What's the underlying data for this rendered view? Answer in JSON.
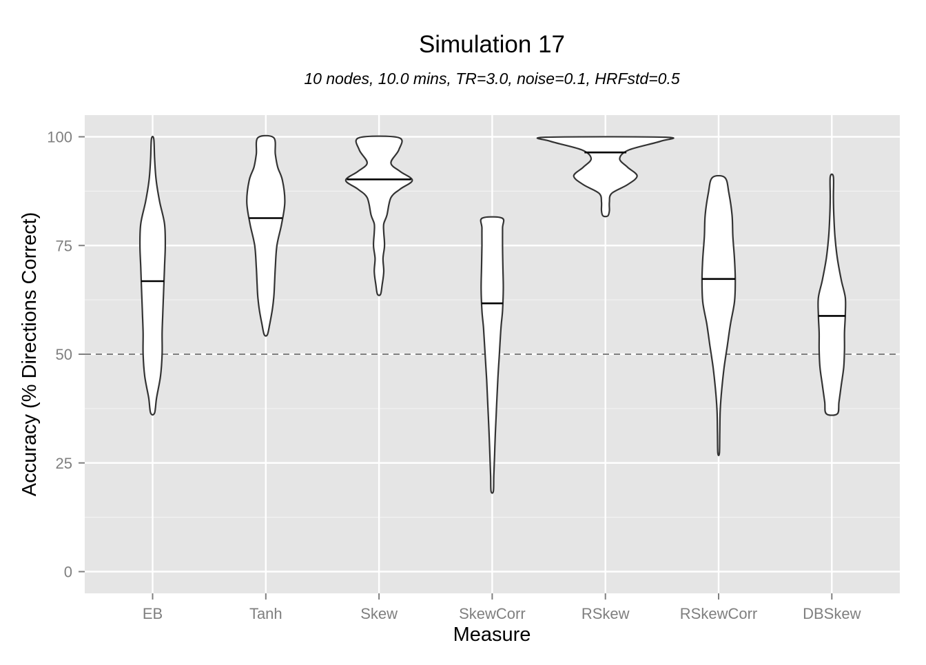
{
  "chart_data": {
    "type": "violin",
    "title": "Simulation 17",
    "subtitle": "10 nodes, 10.0 mins, TR=3.0, noise=0.1, HRFstd=0.5",
    "xlabel": "Measure",
    "ylabel": "Accuracy (% Directions Correct)",
    "ylim": [
      -5,
      105
    ],
    "yticks": [
      0,
      25,
      50,
      75,
      100
    ],
    "reference_line": 50,
    "categories": [
      "EB",
      "Tanh",
      "Skew",
      "SkewCorr",
      "RSkew",
      "RSkewCorr",
      "DBSkew"
    ],
    "violins": [
      {
        "category": "EB",
        "median": 66.8,
        "profile": [
          [
            36.5,
            0.025
          ],
          [
            40,
            0.05
          ],
          [
            45,
            0.1
          ],
          [
            50,
            0.12
          ],
          [
            55,
            0.12
          ],
          [
            60,
            0.13
          ],
          [
            65,
            0.14
          ],
          [
            70,
            0.15
          ],
          [
            75,
            0.16
          ],
          [
            80,
            0.15
          ],
          [
            85,
            0.09
          ],
          [
            90,
            0.045
          ],
          [
            95,
            0.025
          ],
          [
            99.5,
            0.015
          ]
        ]
      },
      {
        "category": "Tanh",
        "median": 81.3,
        "profile": [
          [
            54.5,
            0.02
          ],
          [
            57,
            0.05
          ],
          [
            60,
            0.08
          ],
          [
            63,
            0.1
          ],
          [
            66,
            0.11
          ],
          [
            70,
            0.12
          ],
          [
            75,
            0.14
          ],
          [
            80,
            0.2
          ],
          [
            85,
            0.24
          ],
          [
            90,
            0.21
          ],
          [
            93,
            0.15
          ],
          [
            96,
            0.12
          ],
          [
            99.8,
            0.1
          ]
        ]
      },
      {
        "category": "Skew",
        "median": 90.2,
        "profile": [
          [
            63.8,
            0.02
          ],
          [
            66,
            0.04
          ],
          [
            69,
            0.06
          ],
          [
            72,
            0.05
          ],
          [
            75,
            0.07
          ],
          [
            78,
            0.06
          ],
          [
            80,
            0.06
          ],
          [
            82,
            0.1
          ],
          [
            86,
            0.15
          ],
          [
            88,
            0.27
          ],
          [
            90,
            0.42
          ],
          [
            92,
            0.27
          ],
          [
            94,
            0.15
          ],
          [
            97,
            0.25
          ],
          [
            99.8,
            0.25
          ]
        ]
      },
      {
        "category": "SkewCorr",
        "median": 61.7,
        "profile": [
          [
            18.5,
            0.015
          ],
          [
            22,
            0.02
          ],
          [
            27,
            0.03
          ],
          [
            32,
            0.04
          ],
          [
            38,
            0.055
          ],
          [
            44,
            0.07
          ],
          [
            50,
            0.09
          ],
          [
            56,
            0.11
          ],
          [
            60,
            0.13
          ],
          [
            65,
            0.14
          ],
          [
            70,
            0.135
          ],
          [
            75,
            0.13
          ],
          [
            79,
            0.13
          ],
          [
            81.3,
            0.125
          ]
        ]
      },
      {
        "category": "RSkew",
        "median": 96.4,
        "profile": [
          [
            81.8,
            0.03
          ],
          [
            83,
            0.05
          ],
          [
            85,
            0.05
          ],
          [
            87,
            0.08
          ],
          [
            89,
            0.28
          ],
          [
            91,
            0.4
          ],
          [
            93,
            0.28
          ],
          [
            95,
            0.18
          ],
          [
            97,
            0.3
          ],
          [
            99,
            0.7
          ],
          [
            99.9,
            0.75
          ]
        ]
      },
      {
        "category": "RSkewCorr",
        "median": 67.3,
        "profile": [
          [
            27.3,
            0.01
          ],
          [
            32,
            0.015
          ],
          [
            37,
            0.02
          ],
          [
            42,
            0.04
          ],
          [
            47,
            0.07
          ],
          [
            52,
            0.11
          ],
          [
            57,
            0.15
          ],
          [
            62,
            0.2
          ],
          [
            67,
            0.21
          ],
          [
            72,
            0.2
          ],
          [
            77,
            0.18
          ],
          [
            82,
            0.17
          ],
          [
            87,
            0.13
          ],
          [
            90.6,
            0.08
          ]
        ]
      },
      {
        "category": "DBSkew",
        "median": 58.8,
        "profile": [
          [
            36.3,
            0.07
          ],
          [
            39,
            0.09
          ],
          [
            43,
            0.12
          ],
          [
            47,
            0.15
          ],
          [
            51,
            0.16
          ],
          [
            55,
            0.16
          ],
          [
            59,
            0.17
          ],
          [
            63,
            0.17
          ],
          [
            67,
            0.12
          ],
          [
            72,
            0.07
          ],
          [
            77,
            0.04
          ],
          [
            82,
            0.025
          ],
          [
            86,
            0.02
          ],
          [
            90.8,
            0.02
          ]
        ]
      }
    ],
    "colors": {
      "panel_background": "#E5E5E5",
      "grid_major": "#FFFFFF",
      "grid_minor": "#F2F2F2",
      "violin_fill": "#FFFFFF",
      "violin_outline": "#333333",
      "reference_line": "#7F7F7F",
      "tick_text": "#7F7F7F"
    }
  }
}
